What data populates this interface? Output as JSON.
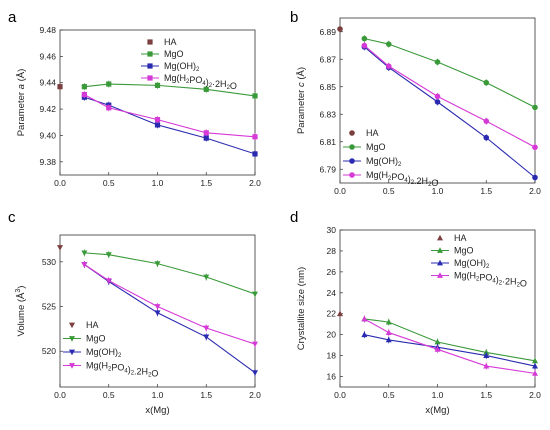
{
  "colors": {
    "HA": "#7b3f3f",
    "MgO": "#3a9a3a",
    "MgOH2": "#2a2ab0",
    "MgH2PO4": "#d63ad6"
  },
  "panel_letters": [
    "a",
    "b",
    "c",
    "d"
  ],
  "chart_data": [
    {
      "type": "line",
      "panel": "a",
      "xlabel": "",
      "ylabel": "Parameter a (Å)",
      "ylabel_parts": [
        "Parameter ",
        "a",
        " (Å)"
      ],
      "xlim": [
        0,
        2
      ],
      "ylim": [
        9.37,
        9.48
      ],
      "xticks": [
        "0.0",
        "0.5",
        "1.0",
        "1.5",
        "2.0"
      ],
      "yticks": [
        "9.38",
        "9.40",
        "9.42",
        "9.44",
        "9.46",
        "9.48"
      ],
      "legend_position": "top-right",
      "series": [
        {
          "name": "HA",
          "key": "HA",
          "marker": "square",
          "x": [
            0
          ],
          "y": [
            9.437
          ]
        },
        {
          "name": "MgO",
          "key": "MgO",
          "marker": "square",
          "x": [
            0.25,
            0.5,
            1.0,
            1.5,
            2.0
          ],
          "y": [
            9.437,
            9.439,
            9.438,
            9.435,
            9.43
          ]
        },
        {
          "name": "Mg(OH)2",
          "key": "MgOH2",
          "marker": "square",
          "x": [
            0.25,
            0.5,
            1.0,
            1.5,
            2.0
          ],
          "y": [
            9.429,
            9.423,
            9.408,
            9.398,
            9.386
          ]
        },
        {
          "name": "Mg(H2PO4)2·2H2O",
          "key": "MgH2PO4",
          "marker": "square",
          "x": [
            0.25,
            0.5,
            1.0,
            1.5,
            2.0
          ],
          "y": [
            9.431,
            9.421,
            9.412,
            9.402,
            9.399
          ]
        }
      ]
    },
    {
      "type": "line",
      "panel": "b",
      "xlabel": "",
      "ylabel": "Parameter c (Å)",
      "ylabel_parts": [
        "Parameter ",
        "c",
        " (Å)"
      ],
      "xlim": [
        0,
        2
      ],
      "ylim": [
        6.78,
        6.9
      ],
      "xticks": [
        "0.0",
        "0.5",
        "1.0",
        "1.5",
        "2.0"
      ],
      "yticks": [
        "6.79",
        "6.81",
        "6.83",
        "6.85",
        "6.87",
        "6.89"
      ],
      "legend_position": "bottom-left",
      "series": [
        {
          "name": "HA",
          "key": "HA",
          "marker": "circle",
          "x": [
            0
          ],
          "y": [
            6.892
          ]
        },
        {
          "name": "MgO",
          "key": "MgO",
          "marker": "circle",
          "x": [
            0.25,
            0.5,
            1.0,
            1.5,
            2.0
          ],
          "y": [
            6.885,
            6.881,
            6.868,
            6.853,
            6.835
          ]
        },
        {
          "name": "Mg(OH)2",
          "key": "MgOH2",
          "marker": "circle",
          "x": [
            0.25,
            0.5,
            1.0,
            1.5,
            2.0
          ],
          "y": [
            6.879,
            6.864,
            6.839,
            6.813,
            6.784
          ]
        },
        {
          "name": "Mg(H2PO4)2.2H2O",
          "key": "MgH2PO4",
          "marker": "circle",
          "x": [
            0.25,
            0.5,
            1.0,
            1.5,
            2.0
          ],
          "y": [
            6.88,
            6.865,
            6.843,
            6.825,
            6.806
          ]
        }
      ]
    },
    {
      "type": "line",
      "panel": "c",
      "xlabel": "x(Mg)",
      "ylabel": "Volume (Å³)",
      "ylabel_parts": [
        "Volume (Å",
        "3",
        ")"
      ],
      "xlim": [
        0,
        2
      ],
      "ylim": [
        516,
        533
      ],
      "xticks": [
        "0.0",
        "0.5",
        "1.0",
        "1.5",
        "2.0"
      ],
      "yticks": [
        "520",
        "525",
        "530"
      ],
      "legend_position": "bottom-left",
      "series": [
        {
          "name": "HA",
          "key": "HA",
          "marker": "triangle-down",
          "x": [
            0
          ],
          "y": [
            531.6
          ]
        },
        {
          "name": "MgO",
          "key": "MgO",
          "marker": "triangle-down",
          "x": [
            0.25,
            0.5,
            1.0,
            1.5,
            2.0
          ],
          "y": [
            531.0,
            530.8,
            529.8,
            528.3,
            526.4
          ]
        },
        {
          "name": "Mg(OH)2",
          "key": "MgOH2",
          "marker": "triangle-down",
          "x": [
            0.25,
            0.5,
            1.0,
            1.5,
            2.0
          ],
          "y": [
            529.7,
            527.8,
            524.3,
            521.6,
            517.6
          ]
        },
        {
          "name": "Mg(H2PO4)2.2H2O",
          "key": "MgH2PO4",
          "marker": "triangle-down",
          "x": [
            0.25,
            0.5,
            1.0,
            1.5,
            2.0
          ],
          "y": [
            529.7,
            527.9,
            525.0,
            522.6,
            520.8
          ]
        }
      ]
    },
    {
      "type": "line",
      "panel": "d",
      "xlabel": "x(Mg)",
      "ylabel": "Crystallite size (nm)",
      "ylabel_parts": [
        "Crystallite size (nm)"
      ],
      "xlim": [
        0,
        2
      ],
      "ylim": [
        15,
        30
      ],
      "xticks": [
        "0.0",
        "0.5",
        "1.0",
        "1.5",
        "2.0"
      ],
      "yticks": [
        "16",
        "18",
        "20",
        "22",
        "24",
        "26",
        "28",
        "30"
      ],
      "legend_position": "top-right",
      "series": [
        {
          "name": "HA",
          "key": "HA",
          "marker": "triangle-up",
          "x": [
            0
          ],
          "y": [
            22.0
          ]
        },
        {
          "name": "MgO",
          "key": "MgO",
          "marker": "triangle-up",
          "x": [
            0.25,
            0.5,
            1.0,
            1.5,
            2.0
          ],
          "y": [
            21.5,
            21.2,
            19.3,
            18.3,
            17.5
          ]
        },
        {
          "name": "Mg(OH)2",
          "key": "MgOH2",
          "marker": "triangle-up",
          "x": [
            0.25,
            0.5,
            1.0,
            1.5,
            2.0
          ],
          "y": [
            20.0,
            19.5,
            18.8,
            18.0,
            17.0
          ]
        },
        {
          "name": "Mg(H2PO4)2·2H2O",
          "key": "MgH2PO4",
          "marker": "triangle-up",
          "x": [
            0.25,
            0.5,
            1.0,
            1.5,
            2.0
          ],
          "y": [
            21.5,
            20.2,
            18.6,
            17.0,
            16.3
          ]
        }
      ]
    }
  ]
}
